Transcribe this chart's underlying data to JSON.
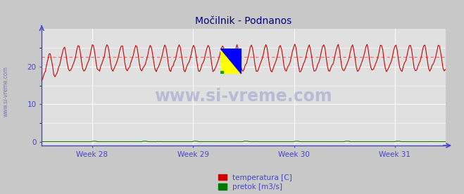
{
  "title": "Močilnik - Podnanos",
  "title_color": "#000080",
  "title_fontsize": 10,
  "bg_color": "#c8c8c8",
  "plot_bg_color": "#e0e0e0",
  "grid_color": "#ffffff",
  "axis_color": "#4444cc",
  "tick_color": "#4444cc",
  "watermark_text": "www.si-vreme.com",
  "watermark_color": "#3333aa",
  "watermark_alpha": 0.22,
  "side_label_text": "www.si-vreme.com",
  "side_label_color": "#3333aa",
  "xticklabels": [
    "Week 28",
    "Week 29",
    "Week 30",
    "Week 31"
  ],
  "yticks": [
    0,
    10,
    20
  ],
  "ylim": [
    -1,
    30
  ],
  "temp_color": "#cc0000",
  "pretok_color": "#007700",
  "avg_line_color": "#ff6666",
  "avg_temp_value": 22.5,
  "legend_temp_label": "temperatura [C]",
  "legend_pretok_label": "pretok [m3/s]",
  "n_points": 336,
  "temp_base": 22.0,
  "temp_amplitude": 3.2,
  "temp_period_hours": 24,
  "pretok_base": 0.08,
  "pretok_spikes": [
    42,
    84,
    126,
    168,
    210,
    252,
    294
  ],
  "logo_yellow": "#ffff00",
  "logo_blue": "#0000ff",
  "logo_green": "#00aa00",
  "legend_color": "#cc0000"
}
